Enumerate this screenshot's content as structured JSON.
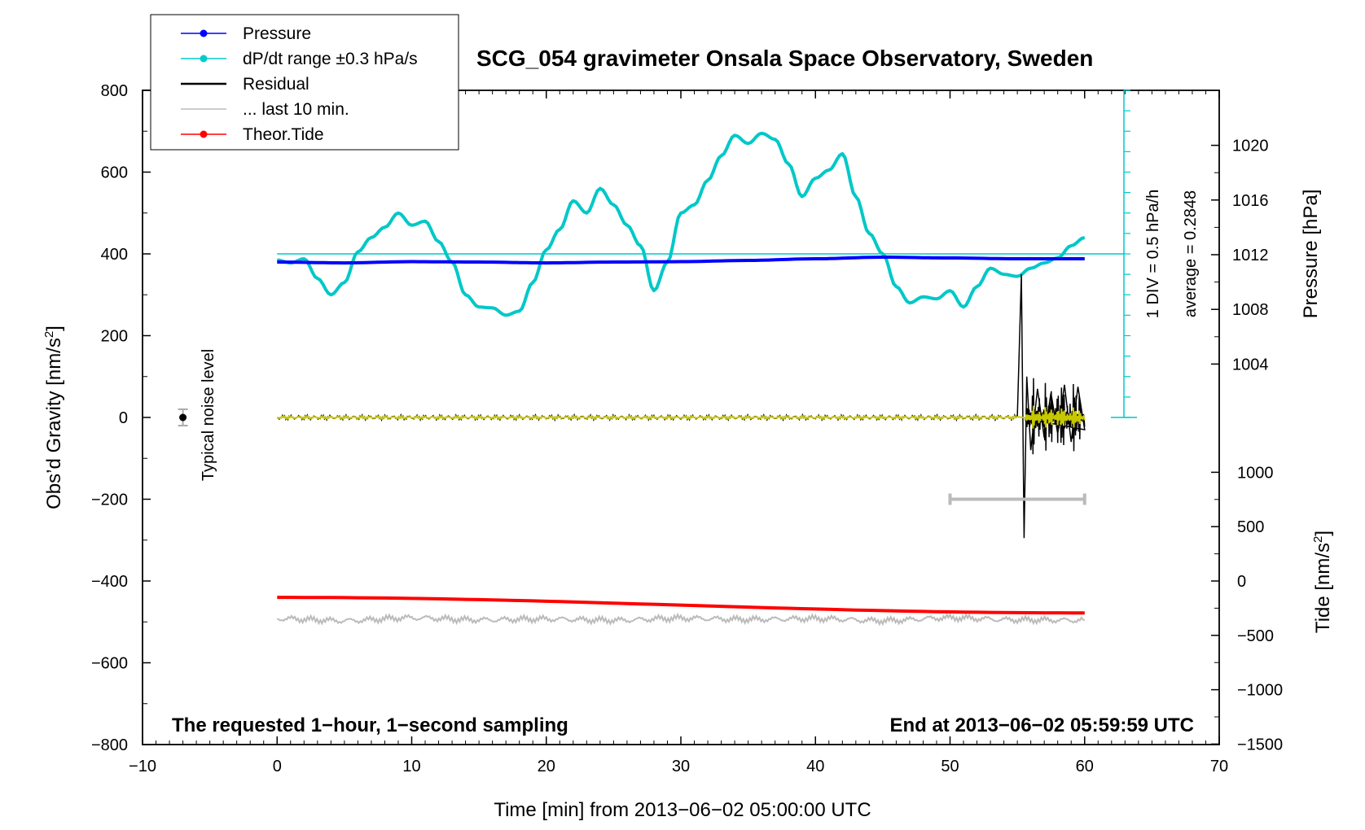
{
  "chart_data": {
    "type": "line",
    "title": "SCG_054 gravimeter Onsala Space Observatory, Sweden",
    "xlabel": "Time [min] from 2013−06−02 05:00:00 UTC",
    "ylabel": "Obs’d Gravity [nm/s",
    "ylabel_sup": "2",
    "ylabel_close": "]",
    "y2label": "Pressure [hPa]",
    "y3label": "Tide [nm/s",
    "y3label_sup": "2",
    "y3label_close": "]",
    "xlim": [
      -10,
      70
    ],
    "ylim": [
      -800,
      800
    ],
    "xticks": [
      -10,
      0,
      10,
      20,
      30,
      40,
      50,
      60,
      70
    ],
    "xtick_labels": [
      "−10",
      "0",
      "10",
      "20",
      "30",
      "40",
      "50",
      "60",
      "70"
    ],
    "yticks": [
      -800,
      -600,
      -400,
      -200,
      0,
      200,
      400,
      600,
      800
    ],
    "ytick_labels": [
      "−800",
      "−600",
      "−400",
      "−200",
      "0",
      "200",
      "400",
      "600",
      "800"
    ],
    "pressure_ticks": [
      1004,
      1008,
      1012,
      1016,
      1020
    ],
    "pressure_tick_labels": [
      "1004",
      "1008",
      "1012",
      "1016",
      "1020"
    ],
    "tide_ticks": [
      -1500,
      -1000,
      -500,
      0,
      500,
      1000
    ],
    "tide_tick_labels": [
      "−1500",
      "−1000",
      "−500",
      "0",
      "500",
      "1000"
    ],
    "legend": [
      {
        "label": "Pressure",
        "color": "#0000ff",
        "marker": true
      },
      {
        "label": "dP/dt range ±0.3 hPa/s",
        "color": "#00cccc",
        "marker": true
      },
      {
        "label": "Residual",
        "color": "#000000",
        "marker": false
      },
      {
        "label": "... last 10 min.",
        "color": "#bbbbbb",
        "marker": false
      },
      {
        "label": "Theor.Tide",
        "color": "#ff0000",
        "marker": true
      }
    ],
    "noise_label": "Typical noise level",
    "noise_error": 20,
    "scale_bar_label": "1 DIV = 0.5 hPa/h",
    "average_label": "average = 0.2848",
    "bottom_left_text": "The requested 1−hour, 1−second sampling",
    "bottom_right_text": "End at 2013−06−02 05:59:59 UTC",
    "pressure_trend_hpa_per_h_series": {
      "color": "#00c8c8",
      "x": [
        0,
        1,
        2,
        3,
        4,
        5,
        6,
        7,
        8,
        9,
        10,
        11,
        12,
        13,
        14,
        15,
        16,
        17,
        18,
        19,
        20,
        21,
        22,
        23,
        24,
        25,
        26,
        27,
        28,
        29,
        30,
        31,
        32,
        33,
        34,
        35,
        36,
        37,
        38,
        39,
        40,
        41,
        42,
        43,
        44,
        45,
        46,
        47,
        48,
        49,
        50,
        51,
        52,
        53,
        54,
        55,
        56,
        57,
        58,
        59,
        60
      ],
      "y": [
        385,
        378,
        388,
        340,
        300,
        330,
        405,
        440,
        465,
        500,
        470,
        480,
        430,
        380,
        300,
        270,
        268,
        250,
        260,
        330,
        410,
        460,
        530,
        500,
        560,
        520,
        470,
        420,
        310,
        380,
        500,
        520,
        580,
        640,
        690,
        670,
        695,
        680,
        620,
        540,
        585,
        605,
        645,
        540,
        450,
        400,
        320,
        280,
        295,
        290,
        310,
        270,
        320,
        365,
        350,
        345,
        365,
        378,
        390,
        420,
        440
      ]
    },
    "pressure_series": {
      "color": "#0000ff",
      "x": [
        0,
        5,
        10,
        15,
        20,
        25,
        30,
        35,
        40,
        45,
        50,
        55,
        60
      ],
      "y": [
        380,
        378,
        381,
        380,
        378,
        380,
        381,
        384,
        388,
        392,
        390,
        388,
        388
      ]
    },
    "residual_series": {
      "color": "#000000",
      "x": [
        0,
        5,
        10,
        15,
        20,
        25,
        30,
        35,
        40,
        45,
        50,
        55,
        55.3,
        55.5,
        55.7,
        56,
        56.5,
        57,
        57.5,
        58,
        58.5,
        59,
        59.5,
        60
      ],
      "y": [
        0,
        2,
        -3,
        4,
        1,
        -2,
        3,
        0,
        -4,
        2,
        1,
        0,
        350,
        -295,
        100,
        -80,
        70,
        -50,
        60,
        -40,
        80,
        -60,
        75,
        -30
      ]
    },
    "tide_series": {
      "color": "#ff0000",
      "x": [
        0,
        60
      ],
      "y": [
        -440,
        -478
      ]
    },
    "last10min_series": {
      "color": "#bbbbbb",
      "x": [
        0,
        5,
        10,
        15,
        20,
        25,
        30,
        35,
        40,
        45,
        50,
        55,
        60
      ],
      "y": [
        -492,
        -497,
        -490,
        -495,
        -493,
        -496,
        -491,
        -494,
        -492,
        -497,
        -490,
        -495,
        -496
      ]
    },
    "reference_line": {
      "color": "#00c8c8",
      "y": 400
    },
    "last10min_bar": {
      "color": "#bbbbbb",
      "x": [
        50,
        60
      ],
      "y": -200
    }
  }
}
